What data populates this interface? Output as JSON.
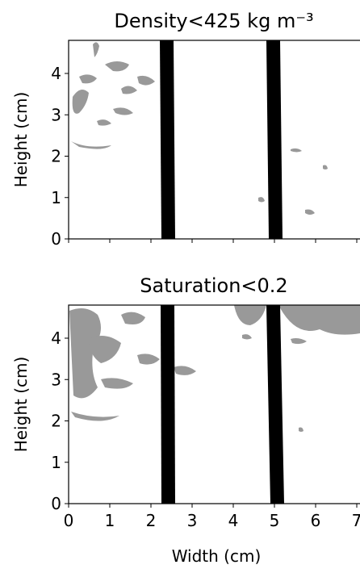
{
  "chart_data": [
    {
      "type": "image",
      "title": "Density<425 kg m⁻³",
      "ylabel": "Height (cm)",
      "xlim": [
        0,
        7.2
      ],
      "ylim": [
        0,
        4.8
      ],
      "xticks": [
        0,
        1,
        2,
        3,
        4,
        5,
        6,
        7
      ],
      "yticks": [
        0,
        1,
        2,
        3,
        4
      ],
      "show_xticklabels": false
    },
    {
      "type": "image",
      "title": "Saturation<0.2",
      "ylabel": "Height (cm)",
      "xlabel": "Width (cm)",
      "xlim": [
        0,
        7.2
      ],
      "ylim": [
        0,
        4.8
      ],
      "xticks": [
        0,
        1,
        2,
        3,
        4,
        5,
        6,
        7
      ],
      "yticks": [
        0,
        1,
        2,
        3,
        4
      ],
      "show_xticklabels": true
    }
  ]
}
